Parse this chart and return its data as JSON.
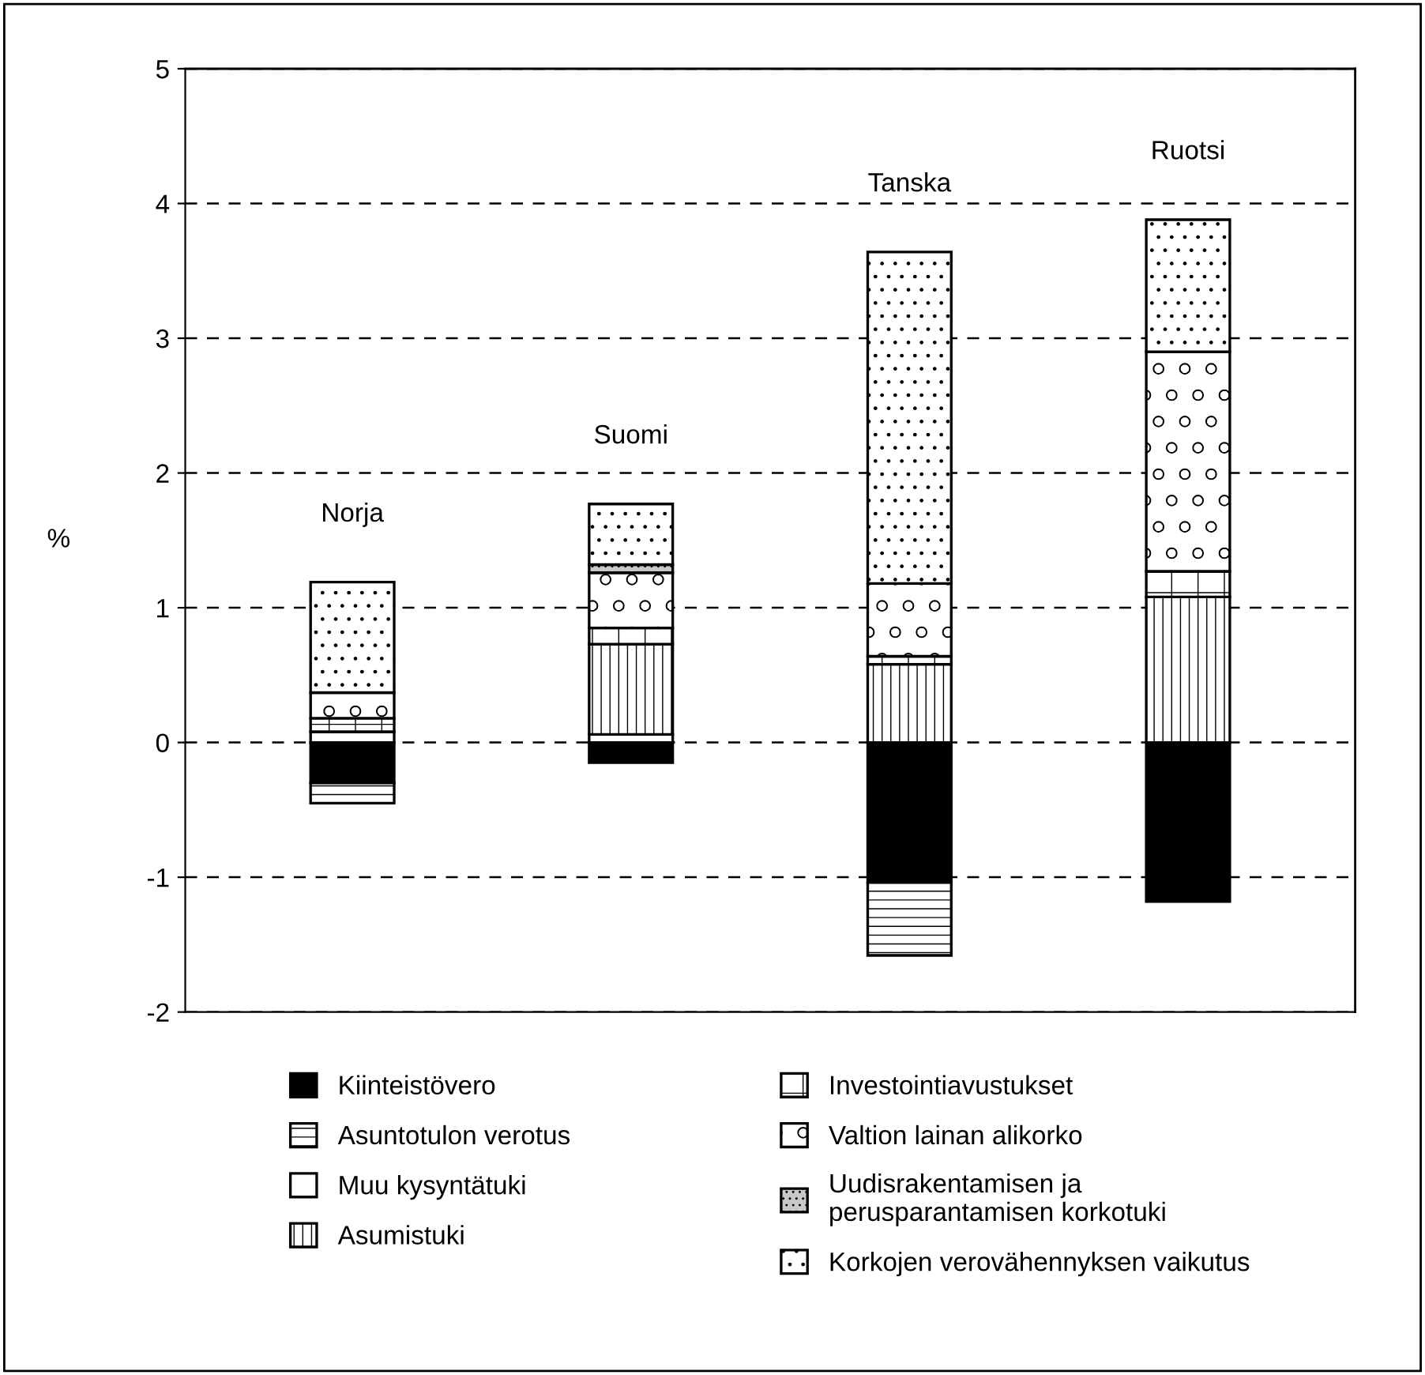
{
  "chart_data": {
    "type": "bar",
    "stacked": true,
    "ylabel": "%",
    "categories": [
      "Norja",
      "Suomi",
      "Tanska",
      "Ruotsi"
    ],
    "series": [
      {
        "name": "Kiinteistövero",
        "color": "#000000",
        "values": [
          -0.3,
          -0.15,
          -1.04,
          -1.18
        ]
      },
      {
        "name": "Asuntotulon verotus",
        "color": "#ffffff",
        "values": [
          -0.15,
          null,
          -0.54,
          null
        ]
      },
      {
        "name": "Muu kysyntätuki",
        "color": "#ffffff",
        "values": [
          0.08,
          0.06,
          null,
          null
        ]
      },
      {
        "name": "Asumistuki",
        "color": "#ffffff",
        "values": [
          null,
          0.67,
          0.58,
          1.08
        ]
      },
      {
        "name": "Investointiavustukset",
        "color": "#ffffff",
        "values": [
          0.1,
          0.12,
          0.06,
          0.19
        ]
      },
      {
        "name": "Valtion lainan alikorko",
        "color": "#ffffff",
        "values": [
          0.19,
          0.41,
          0.54,
          1.63
        ]
      },
      {
        "name": "Uudisrakentamisen ja\nperusparantamisen korkotuki",
        "color": "#c8c8c8",
        "values": [
          null,
          0.06,
          null,
          null
        ]
      },
      {
        "name": "Korkojen verovähennyksen vaikutus",
        "color": "#ffffff",
        "values": [
          0.82,
          0.45,
          2.46,
          0.98
        ]
      }
    ],
    "ylim": [
      -2,
      5
    ],
    "yticks": [
      -2,
      -1,
      0,
      1,
      2,
      3,
      4,
      5
    ],
    "grid": "y",
    "legend": "bottom"
  }
}
